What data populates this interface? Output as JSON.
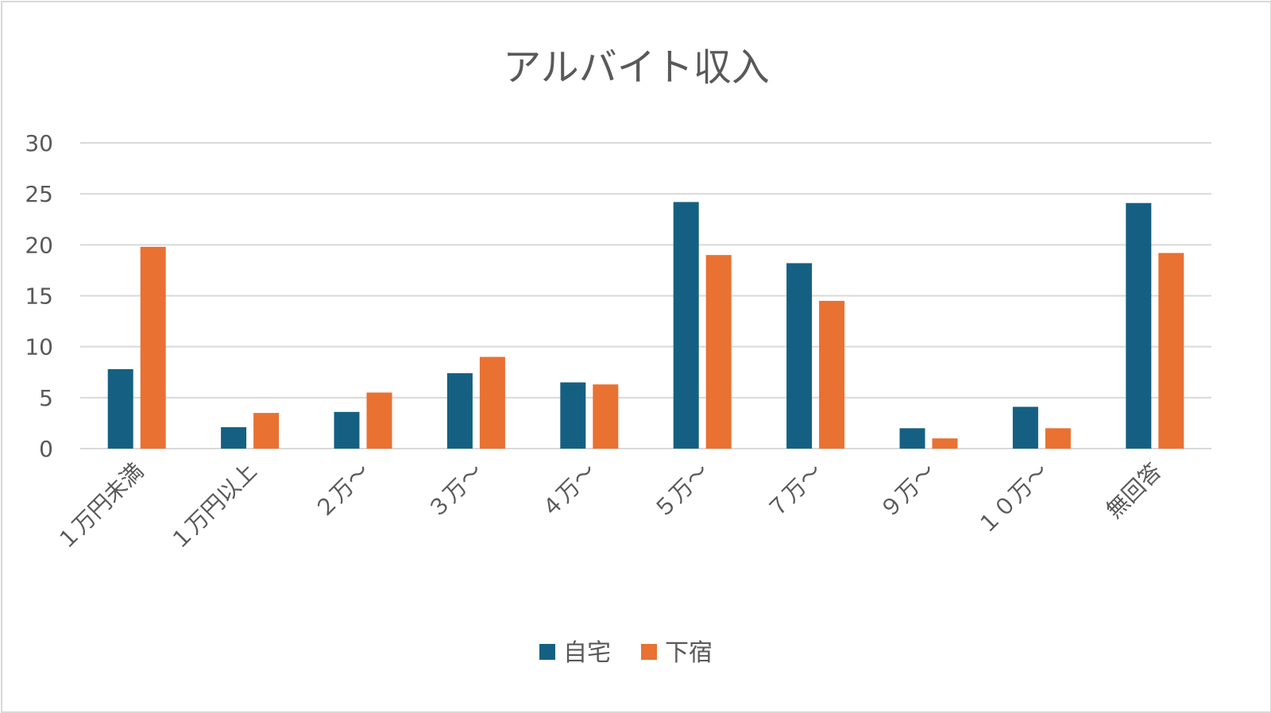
{
  "chart_data": {
    "type": "bar",
    "title": "アルバイト収入",
    "xlabel": "",
    "ylabel": "",
    "categories": [
      "１万円未満",
      "１万円以上",
      "２万～",
      "３万～",
      "４万～",
      "５万～",
      "７万～",
      "９万～",
      "１０万～",
      "無回答"
    ],
    "series": [
      {
        "name": "自宅",
        "color": "#156082",
        "values": [
          7.8,
          2.1,
          3.6,
          7.4,
          6.5,
          24.2,
          18.2,
          2.0,
          4.1,
          24.1
        ]
      },
      {
        "name": "下宿",
        "color": "#E97132",
        "values": [
          19.8,
          3.5,
          5.5,
          9.0,
          6.3,
          19.0,
          14.5,
          1.0,
          2.0,
          19.2
        ]
      }
    ],
    "ylim": [
      0,
      30
    ],
    "yticks": [
      0,
      5,
      10,
      15,
      20,
      25,
      30
    ],
    "grid": true,
    "legend_position": "bottom"
  }
}
